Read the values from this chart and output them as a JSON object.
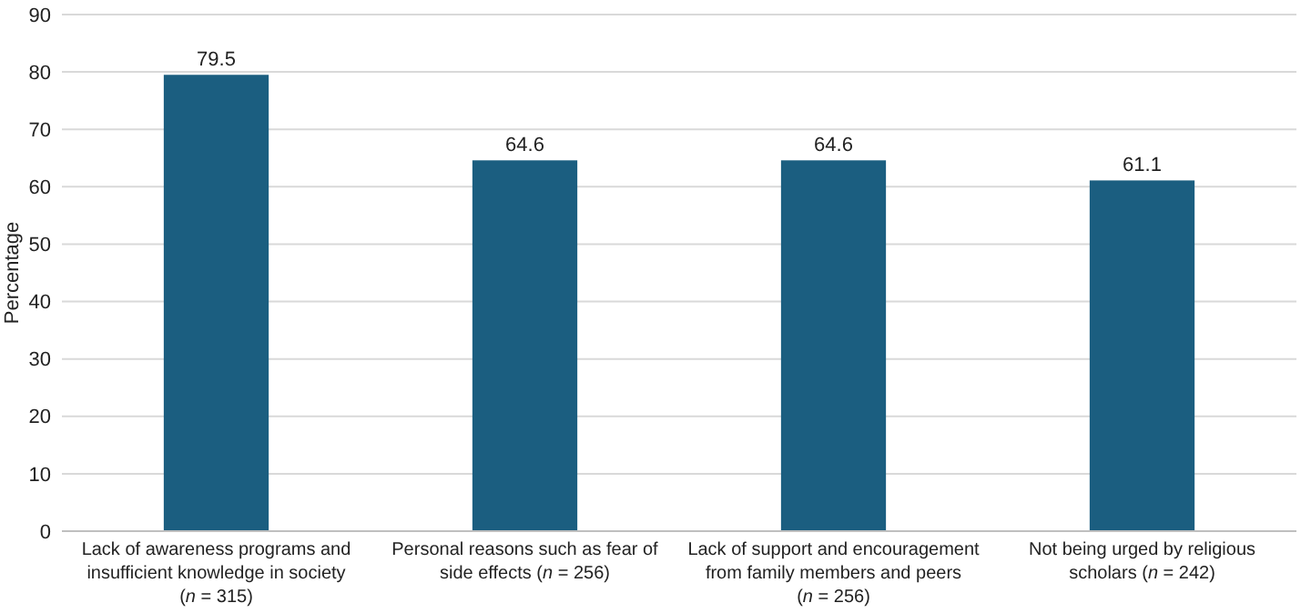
{
  "chart_data": {
    "type": "bar",
    "ylabel": "Percentage",
    "categories": [
      "Lack of awareness programs and\ninsufficient knowledge in society\n(n = 315)",
      "Personal reasons such as fear of\nside effects (n = 256)",
      "Lack of support and encouragement\nfrom family members and peers\n(n = 256)",
      "Not being urged by religious\nscholars (n = 242)"
    ],
    "values": [
      79.5,
      64.6,
      64.6,
      61.1
    ],
    "color": "#1b5e80",
    "ylim": [
      0,
      90
    ],
    "yticks": [
      0,
      10,
      20,
      30,
      40,
      50,
      60,
      70,
      80,
      90
    ],
    "grid": "y",
    "data_labels": true
  }
}
